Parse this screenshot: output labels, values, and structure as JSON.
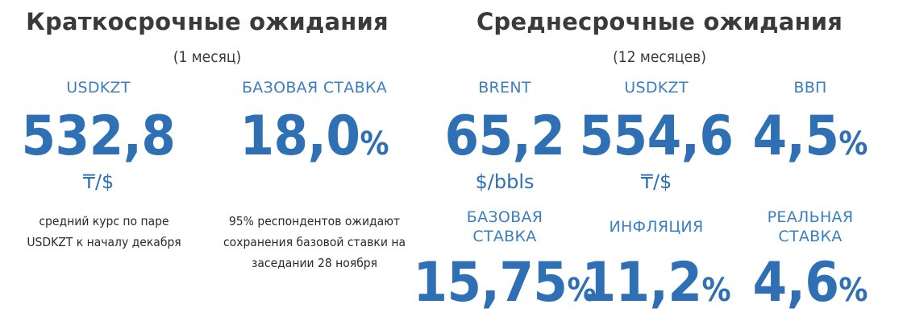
{
  "short_term": {
    "title": "Краткосрочные ожидания",
    "period": "(1 месяц)",
    "usdkzt": {
      "label": "USDKZT",
      "value": "532,8",
      "unit": "₸/$",
      "note_line1": "средний курс по паре",
      "note_line2": "USDKZT к началу декабря"
    },
    "base_rate": {
      "label": "БАЗОВАЯ СТАВКА",
      "value": "18,0",
      "pct": "%",
      "note_line1": "95% респондентов ожидают",
      "note_line2": "сохранения базовой ставки на",
      "note_line3": "заседании 28 ноября"
    }
  },
  "mid_term": {
    "title": "Среднесрочные ожидания",
    "period": "(12 месяцев)",
    "brent": {
      "label": "BRENT",
      "value": "65,2",
      "unit": "$/bbls"
    },
    "usdkzt": {
      "label": "USDKZT",
      "value": "554,6",
      "unit": "₸/$"
    },
    "gdp": {
      "label": "ВВП",
      "value": "4,5",
      "pct": "%"
    },
    "base_rate": {
      "label_line1": "БАЗОВАЯ",
      "label_line2": "СТАВКА",
      "value": "15,75",
      "pct": "%"
    },
    "inflation": {
      "label": "ИНФЛЯЦИЯ",
      "value": "11,2",
      "pct": "%"
    },
    "real_rate": {
      "label_line1": "РЕАЛЬНАЯ",
      "label_line2": "СТАВКА",
      "value": "4,6",
      "pct": "%"
    }
  }
}
